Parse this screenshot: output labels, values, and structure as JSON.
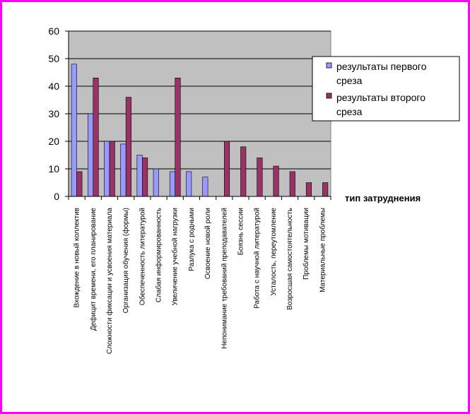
{
  "chart_data": {
    "type": "bar",
    "xlabel": "тип затруднения",
    "ylabel": "",
    "ylim": [
      0,
      60
    ],
    "yticks": [
      0,
      10,
      20,
      30,
      40,
      50,
      60
    ],
    "grid": true,
    "legend_position": "right",
    "categories": [
      "Вхождение в новый коллектив",
      "Дефицит времени, его планирование",
      "Сложности фиксации и усвоения материала",
      "Организация обучения (формы)",
      "Обеспеченность литературой",
      "Слабая информированность",
      "Увеличение учебной нагрузки",
      "Разлука с родными",
      "Освоение новой роли",
      "Непонимание требований преподавателей",
      "Боязнь сессии",
      "Работа с научной литературой",
      "Усталость, переутомление",
      "Возросшая самостоятельность",
      "Проблемы мотивации",
      "Материальные проблемы"
    ],
    "series": [
      {
        "name": "результаты первого среза",
        "color": "#9999ff",
        "values": [
          48,
          30,
          20,
          19,
          15,
          10,
          9,
          9,
          7,
          0,
          0,
          0,
          0,
          0,
          0,
          0
        ]
      },
      {
        "name": "результаты второго среза",
        "color": "#993366",
        "values": [
          9,
          43,
          20,
          36,
          14,
          0,
          43,
          0,
          0,
          20,
          18,
          14,
          11,
          9,
          5,
          5
        ]
      }
    ]
  },
  "colors": {
    "frame": "#ff00ff",
    "plot_background": "#c0c0c0"
  }
}
